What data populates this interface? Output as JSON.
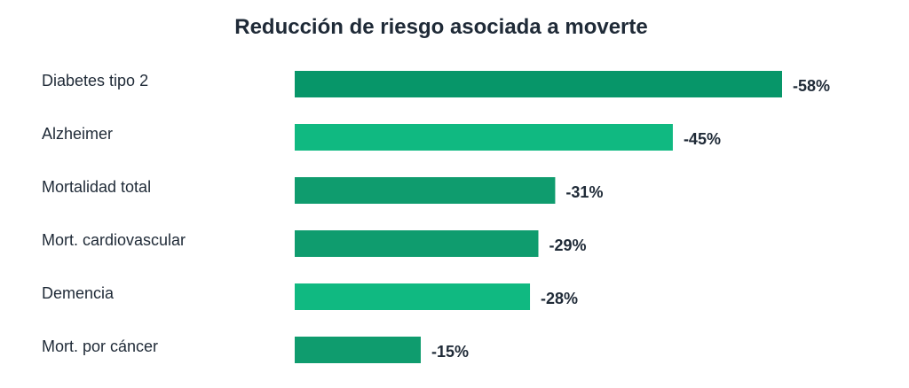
{
  "chart_data": {
    "type": "bar",
    "orientation": "horizontal",
    "title": "Reducción de riesgo asociada a moverte",
    "xlabel": "",
    "ylabel": "",
    "categories": [
      "Diabetes tipo 2",
      "Alzheimer",
      "Mortalidad total",
      "Mort. cardiovascular",
      "Demencia",
      "Mort. por cáncer"
    ],
    "values": [
      -58,
      -45,
      -31,
      -29,
      -28,
      -15
    ],
    "value_labels": [
      "-58%",
      "-45%",
      "-31%",
      "-29%",
      "-28%",
      "-15%"
    ],
    "bar_colors": [
      "#079669",
      "#10b981",
      "#0f9c6e",
      "#0f9c6e",
      "#10b981",
      "#0f9c6e"
    ],
    "xlim": [
      0,
      58
    ],
    "grid": false,
    "legend": "none"
  }
}
